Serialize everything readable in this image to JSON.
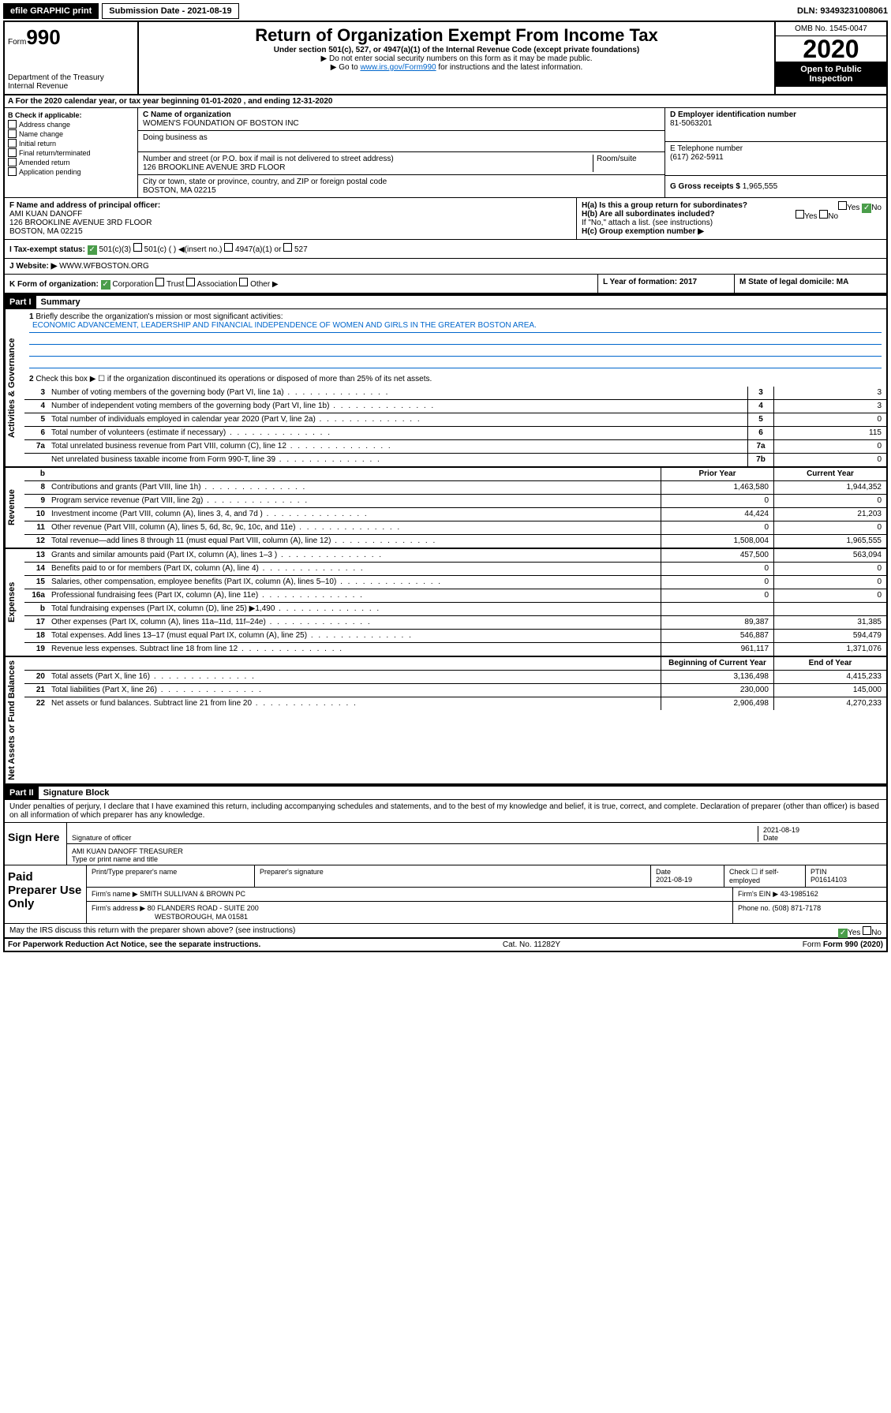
{
  "topbar": {
    "efile": "efile GRAPHIC print",
    "subm_label": "Submission Date - 2021-08-19",
    "dln": "DLN: 93493231008061"
  },
  "header": {
    "form_small": "Form",
    "form_num": "990",
    "dept": "Department of the Treasury",
    "irs": "Internal Revenue",
    "title": "Return of Organization Exempt From Income Tax",
    "subtitle": "Under section 501(c), 527, or 4947(a)(1) of the Internal Revenue Code (except private foundations)",
    "note1": "▶ Do not enter social security numbers on this form as it may be made public.",
    "note2_pre": "▶ Go to ",
    "note2_link": "www.irs.gov/Form990",
    "note2_post": " for instructions and the latest information.",
    "omb": "OMB No. 1545-0047",
    "year": "2020",
    "open": "Open to Public Inspection"
  },
  "rowA": "A   For the 2020 calendar year, or tax year beginning 01-01-2020    , and ending 12-31-2020",
  "colB": {
    "head": "B Check if applicable:",
    "items": [
      "Address change",
      "Name change",
      "Initial return",
      "Final return/terminated",
      "Amended return",
      "Application pending"
    ]
  },
  "colC": {
    "name_label": "C Name of organization",
    "name": "WOMEN'S FOUNDATION OF BOSTON INC",
    "dba_label": "Doing business as",
    "addr_label": "Number and street (or P.O. box if mail is not delivered to street address)",
    "room_label": "Room/suite",
    "addr": "126 BROOKLINE AVENUE 3RD FLOOR",
    "city_label": "City or town, state or province, country, and ZIP or foreign postal code",
    "city": "BOSTON, MA  02215"
  },
  "colD": {
    "ein_label": "D Employer identification number",
    "ein": "81-5063201",
    "tel_label": "E Telephone number",
    "tel": "(617) 262-5911",
    "gross_label": "G Gross receipts $",
    "gross": "1,965,555"
  },
  "rowF": {
    "label": "F  Name and address of principal officer:",
    "name": "AMI KUAN DANOFF",
    "addr1": "126 BROOKLINE AVENUE 3RD FLOOR",
    "addr2": "BOSTON, MA  02215"
  },
  "rowH": {
    "ha": "H(a)  Is this a group return for subordinates?",
    "hb": "H(b)  Are all subordinates included?",
    "hb_note": "If \"No,\" attach a list. (see instructions)",
    "hc": "H(c)  Group exemption number ▶",
    "yes": "Yes",
    "no": "No"
  },
  "rowI": {
    "label": "I     Tax-exempt status:",
    "opts": [
      "501(c)(3)",
      "501(c) (  ) ◀(insert no.)",
      "4947(a)(1) or",
      "527"
    ]
  },
  "rowJ": {
    "label": "J    Website: ▶",
    "val": "WWW.WFBOSTON.ORG"
  },
  "rowK": {
    "label": "K Form of organization:",
    "opts": [
      "Corporation",
      "Trust",
      "Association",
      "Other ▶"
    ],
    "L": "L Year of formation: 2017",
    "M": "M State of legal domicile: MA"
  },
  "part1": {
    "label": "Part I",
    "title": "Summary",
    "q1": "Briefly describe the organization's mission or most significant activities:",
    "mission": "ECONOMIC ADVANCEMENT, LEADERSHIP AND FINANCIAL INDEPENDENCE OF WOMEN AND GIRLS IN THE GREATER BOSTON AREA.",
    "q2": "Check this box ▶ ☐  if the organization discontinued its operations or disposed of more than 25% of its net assets.",
    "rows_gov": [
      {
        "n": "3",
        "d": "Number of voting members of the governing body (Part VI, line 1a)",
        "k": "3",
        "v": "3"
      },
      {
        "n": "4",
        "d": "Number of independent voting members of the governing body (Part VI, line 1b)",
        "k": "4",
        "v": "3"
      },
      {
        "n": "5",
        "d": "Total number of individuals employed in calendar year 2020 (Part V, line 2a)",
        "k": "5",
        "v": "0"
      },
      {
        "n": "6",
        "d": "Total number of volunteers (estimate if necessary)",
        "k": "6",
        "v": "115"
      },
      {
        "n": "7a",
        "d": "Total unrelated business revenue from Part VIII, column (C), line 12",
        "k": "7a",
        "v": "0"
      },
      {
        "n": "",
        "d": "Net unrelated business taxable income from Form 990-T, line 39",
        "k": "7b",
        "v": "0"
      }
    ],
    "col_prior": "Prior Year",
    "col_current": "Current Year",
    "rows_rev": [
      {
        "n": "8",
        "d": "Contributions and grants (Part VIII, line 1h)",
        "p": "1,463,580",
        "c": "1,944,352"
      },
      {
        "n": "9",
        "d": "Program service revenue (Part VIII, line 2g)",
        "p": "0",
        "c": "0"
      },
      {
        "n": "10",
        "d": "Investment income (Part VIII, column (A), lines 3, 4, and 7d )",
        "p": "44,424",
        "c": "21,203"
      },
      {
        "n": "11",
        "d": "Other revenue (Part VIII, column (A), lines 5, 6d, 8c, 9c, 10c, and 11e)",
        "p": "0",
        "c": "0"
      },
      {
        "n": "12",
        "d": "Total revenue—add lines 8 through 11 (must equal Part VIII, column (A), line 12)",
        "p": "1,508,004",
        "c": "1,965,555"
      }
    ],
    "rows_exp": [
      {
        "n": "13",
        "d": "Grants and similar amounts paid (Part IX, column (A), lines 1–3 )",
        "p": "457,500",
        "c": "563,094"
      },
      {
        "n": "14",
        "d": "Benefits paid to or for members (Part IX, column (A), line 4)",
        "p": "0",
        "c": "0"
      },
      {
        "n": "15",
        "d": "Salaries, other compensation, employee benefits (Part IX, column (A), lines 5–10)",
        "p": "0",
        "c": "0"
      },
      {
        "n": "16a",
        "d": "Professional fundraising fees (Part IX, column (A), line 11e)",
        "p": "0",
        "c": "0"
      },
      {
        "n": "b",
        "d": "Total fundraising expenses (Part IX, column (D), line 25) ▶1,490",
        "p": "",
        "c": ""
      },
      {
        "n": "17",
        "d": "Other expenses (Part IX, column (A), lines 11a–11d, 11f–24e)",
        "p": "89,387",
        "c": "31,385"
      },
      {
        "n": "18",
        "d": "Total expenses. Add lines 13–17 (must equal Part IX, column (A), line 25)",
        "p": "546,887",
        "c": "594,479"
      },
      {
        "n": "19",
        "d": "Revenue less expenses. Subtract line 18 from line 12",
        "p": "961,117",
        "c": "1,371,076"
      }
    ],
    "col_begin": "Beginning of Current Year",
    "col_end": "End of Year",
    "rows_net": [
      {
        "n": "20",
        "d": "Total assets (Part X, line 16)",
        "p": "3,136,498",
        "c": "4,415,233"
      },
      {
        "n": "21",
        "d": "Total liabilities (Part X, line 26)",
        "p": "230,000",
        "c": "145,000"
      },
      {
        "n": "22",
        "d": "Net assets or fund balances. Subtract line 21 from line 20",
        "p": "2,906,498",
        "c": "4,270,233"
      }
    ],
    "side_gov": "Activities & Governance",
    "side_rev": "Revenue",
    "side_exp": "Expenses",
    "side_net": "Net Assets or Fund Balances"
  },
  "part2": {
    "label": "Part II",
    "title": "Signature Block",
    "declaration": "Under penalties of perjury, I declare that I have examined this return, including accompanying schedules and statements, and to the best of my knowledge and belief, it is true, correct, and complete. Declaration of preparer (other than officer) is based on all information of which preparer has any knowledge.",
    "sign_here": "Sign Here",
    "sig_officer": "Signature of officer",
    "date_label": "Date",
    "date": "2021-08-19",
    "name_title_label": "Type or print name and title",
    "name_title": "AMI KUAN DANOFF  TREASURER",
    "paid": "Paid Preparer Use Only",
    "prep_name_label": "Print/Type preparer's name",
    "prep_sig_label": "Preparer's signature",
    "prep_date": "2021-08-19",
    "check_label": "Check ☐ if self-employed",
    "ptin_label": "PTIN",
    "ptin": "P01614103",
    "firm_name_label": "Firm's name    ▶",
    "firm_name": "SMITH SULLIVAN & BROWN PC",
    "firm_ein_label": "Firm's EIN ▶",
    "firm_ein": "43-1985162",
    "firm_addr_label": "Firm's address ▶",
    "firm_addr1": "80 FLANDERS ROAD - SUITE 200",
    "firm_addr2": "WESTBOROUGH, MA  01581",
    "phone_label": "Phone no.",
    "phone": "(508) 871-7178",
    "discuss": "May the IRS discuss this return with the preparer shown above? (see instructions)",
    "yes": "Yes",
    "no": "No"
  },
  "footer": {
    "pra": "For Paperwork Reduction Act Notice, see the separate instructions.",
    "cat": "Cat. No. 11282Y",
    "form": "Form 990 (2020)"
  }
}
